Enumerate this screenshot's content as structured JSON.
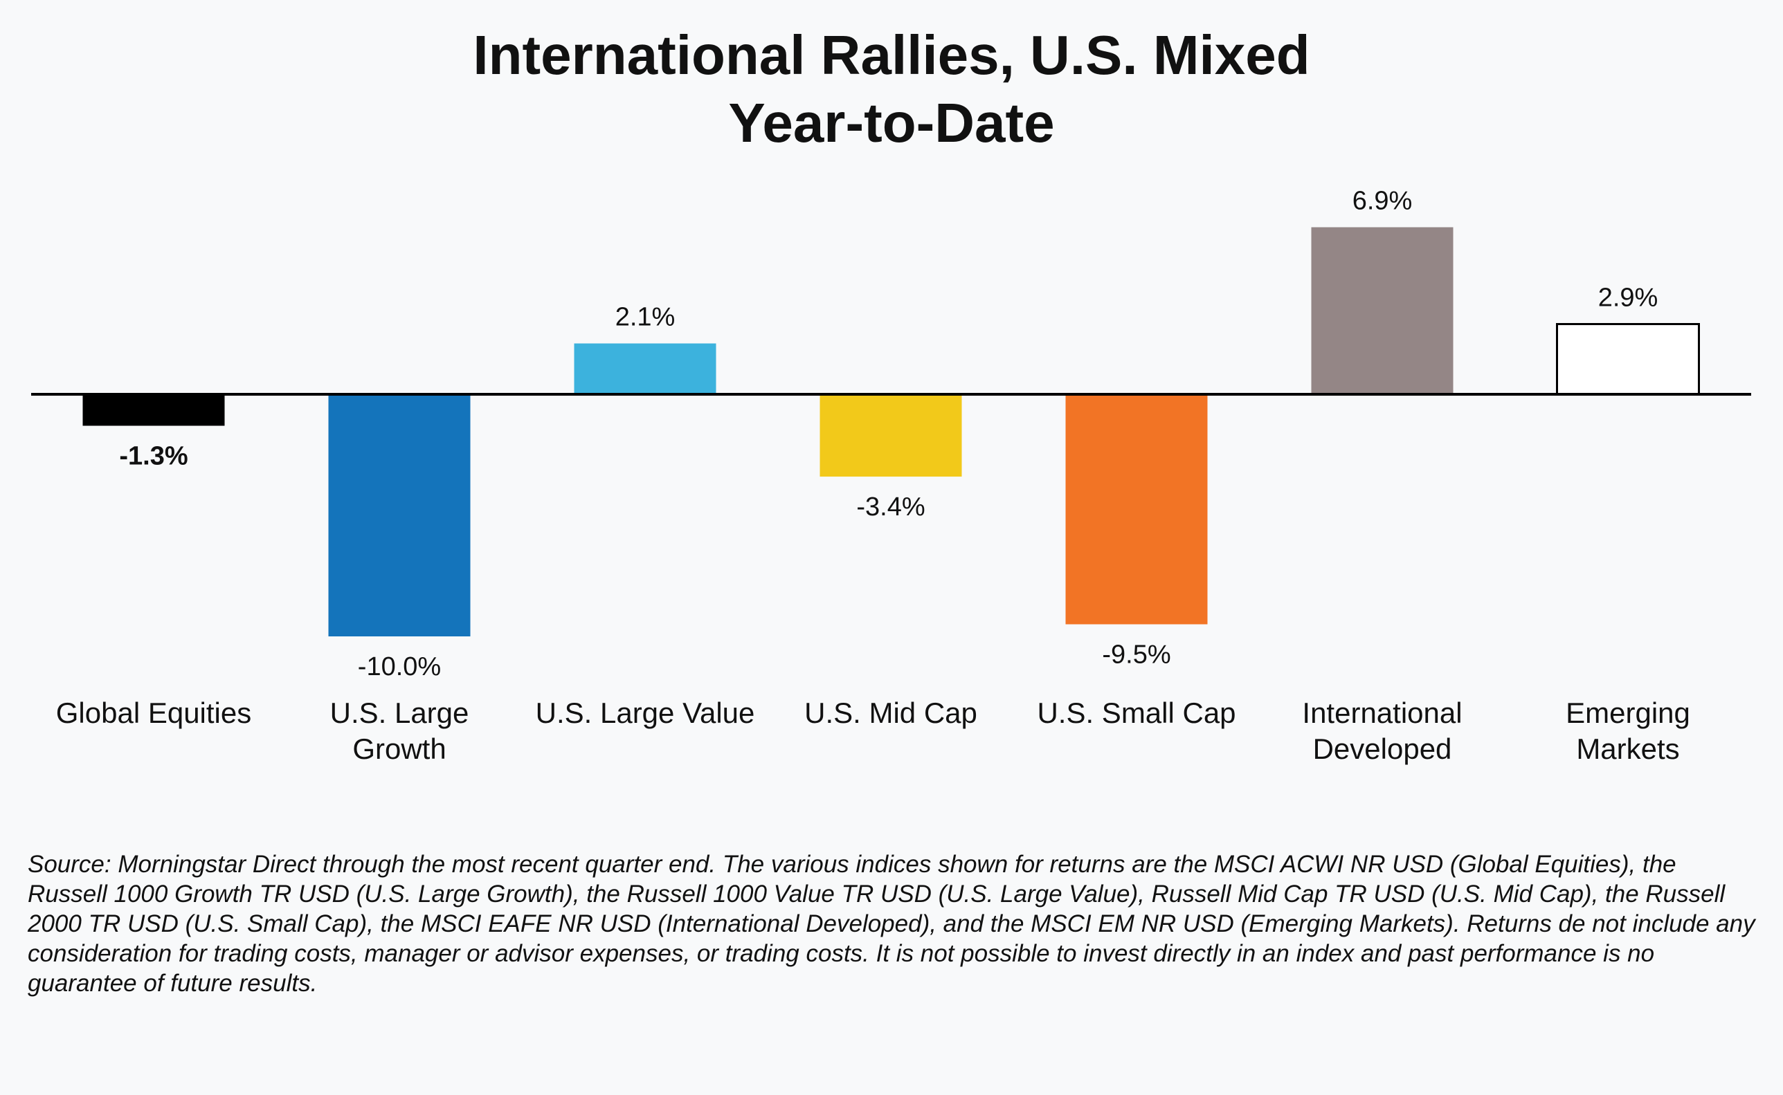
{
  "title": "International Rallies, U.S. Mixed",
  "subtitle": "Year-to-Date",
  "source_note": "Source: Morningstar Direct through the most recent quarter end.  The various indices shown for returns are the MSCI ACWI NR USD (Global Equities), the  Russell 1000 Growth TR USD (U.S. Large Growth), the Russell 1000 Value TR USD (U.S. Large Value), Russell Mid Cap TR USD (U.S. Mid Cap), the Russell 2000 TR USD (U.S. Small Cap), the MSCI EAFE NR USD (International Developed), and the MSCI EM NR USD (Emerging Markets). Returns de not include any consideration for trading costs, manager or advisor expenses, or trading costs.  It is not possible to invest directly in an index and past performance is no guarantee of future results.",
  "chart_data": {
    "type": "bar",
    "title": "International Rallies, U.S. Mixed",
    "subtitle": "Year-to-Date",
    "xlabel": "",
    "ylabel": "",
    "grid": false,
    "unit": "%",
    "categories": [
      [
        "Global Equities"
      ],
      [
        "U.S. Large",
        "Growth"
      ],
      [
        "U.S. Large Value"
      ],
      [
        "U.S. Mid Cap"
      ],
      [
        "U.S. Small Cap"
      ],
      [
        "International",
        "Developed"
      ],
      [
        "Emerging",
        "Markets"
      ]
    ],
    "values": [
      -1.3,
      -10.0,
      2.1,
      -3.4,
      -9.5,
      6.9,
      2.9
    ],
    "value_labels": [
      "-1.3%",
      "-10.0%",
      "2.1%",
      "-3.4%",
      "-9.5%",
      "6.9%",
      "2.9%"
    ],
    "bold_labels": [
      true,
      false,
      false,
      false,
      false,
      false,
      false
    ],
    "colors": [
      "#000000",
      "#1474bb",
      "#3cb2dd",
      "#f2c91a",
      "#f27425",
      "#948686",
      "#ffffff"
    ],
    "bar_outline": "#000000",
    "baseline_color": "#000000"
  }
}
